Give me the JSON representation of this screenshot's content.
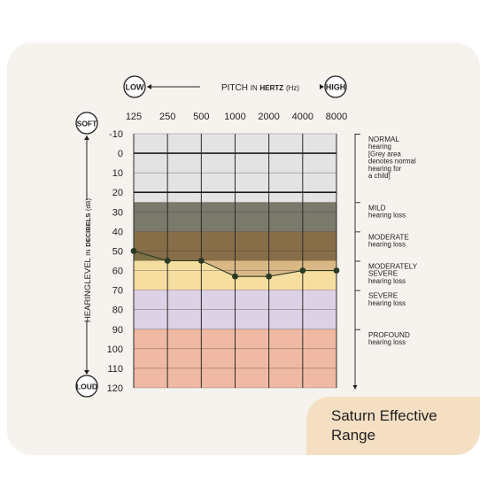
{
  "header": {
    "low_label": "LOW",
    "high_label": "HIGH",
    "pitch_title": "PITCH",
    "pitch_in": "IN",
    "pitch_hertz": "HERTZ",
    "pitch_unit": "(Hz)"
  },
  "side": {
    "soft_label": "SOFT",
    "loud_label": "LOUD",
    "hearing": "HEARINGLEVEL",
    "in_word": "IN",
    "decibels": "DECIBELS",
    "unit": "(dB)"
  },
  "badge": {
    "text": "Saturn Effective\nRange"
  },
  "colors": {
    "normal": "#e3e3e3",
    "mild": "#6b8078",
    "moderate": "#7c7044",
    "moderately_severe": "#f6dea0",
    "severe": "#ddd1e5",
    "profound": "#f0b9a3",
    "overlay": "#9f6b52",
    "marker": "#2b3a24",
    "badge": "#f4dfc3",
    "card": "#f6f3ee"
  },
  "chart_data": {
    "type": "line",
    "title": "",
    "xlabel": "PITCH IN HERTZ (Hz)",
    "ylabel": "HEARINGLEVEL IN DECIBELS (dB)",
    "x_scale": "log2",
    "x_ticks": [
      "125",
      "250",
      "500",
      "1000",
      "2000",
      "4000",
      "8000"
    ],
    "y_ticks": [
      -10,
      0,
      10,
      20,
      30,
      40,
      50,
      60,
      70,
      80,
      90,
      100,
      110,
      120
    ],
    "ylim": [
      -10,
      120
    ],
    "y_inverted": true,
    "grid": true,
    "bands": [
      {
        "from": -10,
        "to": 25,
        "color": "#e3e3e3",
        "label_lines": [
          "NORMAL",
          "hearing",
          "[Grey area",
          "denotes normal",
          "hearing for",
          "a child]"
        ]
      },
      {
        "from": 25,
        "to": 40,
        "color": "#6b8078",
        "label_lines": [
          "MILD",
          "hearing loss"
        ]
      },
      {
        "from": 40,
        "to": 55,
        "color": "#7c7044",
        "label_lines": [
          "MODERATE",
          "hearing loss"
        ]
      },
      {
        "from": 55,
        "to": 70,
        "color": "#f6dea0",
        "label_lines": [
          "MODERATELY",
          "SEVERE",
          "hearing loss"
        ]
      },
      {
        "from": 70,
        "to": 90,
        "color": "#ddd1e5",
        "label_lines": [
          "SEVERE",
          "hearing loss"
        ]
      },
      {
        "from": 90,
        "to": 120,
        "color": "#f0b9a3",
        "label_lines": [
          "PROFOUND",
          "hearing loss"
        ]
      }
    ],
    "series": [
      {
        "x": [
          125,
          250,
          500,
          1000,
          2000,
          4000,
          8000
        ],
        "values": [
          50,
          55,
          55,
          63,
          63,
          60,
          60
        ]
      }
    ],
    "fill_above_series_from": 25
  }
}
